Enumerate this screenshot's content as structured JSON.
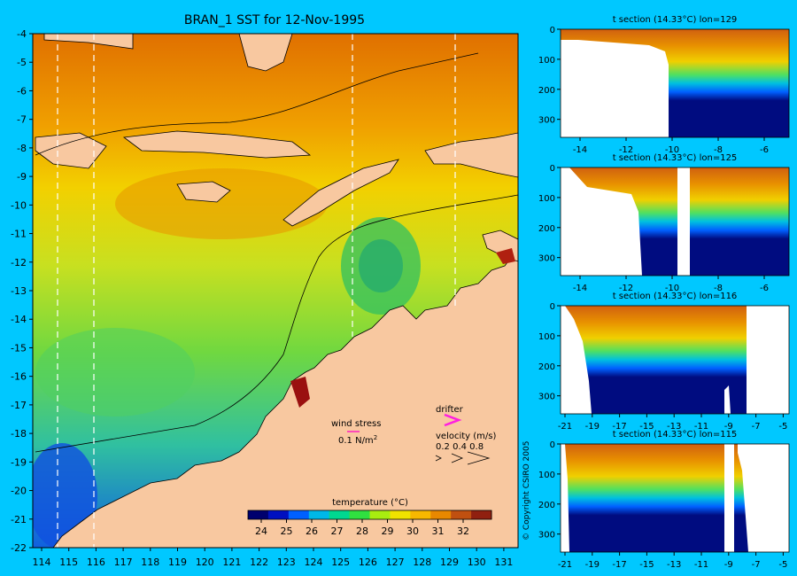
{
  "map": {
    "title": "BRAN_1 SST for 12-Nov-1995",
    "lat_ticks": [
      "-4",
      "-5",
      "-6",
      "-7",
      "-8",
      "-9",
      "-10",
      "-11",
      "-12",
      "-13",
      "-14",
      "-15",
      "-16",
      "-17",
      "-18",
      "-19",
      "-20",
      "-21",
      "-22"
    ],
    "lon_ticks": [
      "114",
      "115",
      "116",
      "117",
      "118",
      "119",
      "120",
      "121",
      "122",
      "123",
      "124",
      "125",
      "126",
      "127",
      "128",
      "129",
      "130",
      "131"
    ],
    "section_lons": [
      114.5,
      115.8,
      125.3,
      129.0
    ],
    "legend": {
      "wind_label": "wind stress",
      "wind_scale": "0.1 N/m",
      "wind_scale_sup": "2",
      "drifter_label": "drifter",
      "velocity_label": "velocity (m/s)",
      "velocity_scale": "0.2 0.4 0.8"
    },
    "colorbar": {
      "label": "temperature (°C)",
      "ticks": [
        "24",
        "25",
        "26",
        "27",
        "28",
        "29",
        "30",
        "31",
        "32"
      ],
      "colors": [
        "#00006e",
        "#0010c0",
        "#0060ff",
        "#00b8e8",
        "#00d890",
        "#30e040",
        "#a8ec10",
        "#f0e400",
        "#f8b800",
        "#e88800",
        "#c05010",
        "#902010"
      ]
    },
    "land_color": "#f8c8a0",
    "copyright": "© Copyright CSIRO 2005"
  },
  "sections": [
    {
      "title": "t section (14.33°C) lon=129",
      "xticks": [
        "-14",
        "-12",
        "-10",
        "-8",
        "-6"
      ],
      "yticks": [
        "0",
        "100",
        "200",
        "300"
      ]
    },
    {
      "title": "t section (14.33°C) lon=125",
      "xticks": [
        "-14",
        "-12",
        "-10",
        "-8",
        "-6"
      ],
      "yticks": [
        "0",
        "100",
        "200",
        "300"
      ]
    },
    {
      "title": "t section (14.33°C) lon=116",
      "xticks": [
        "-21",
        "-19",
        "-17",
        "-15",
        "-13",
        "-11",
        "-9",
        "-7",
        "-5"
      ],
      "yticks": [
        "0",
        "100",
        "200",
        "300"
      ]
    },
    {
      "title": "t section (14.33°C) lon=115",
      "xticks": [
        "-21",
        "-19",
        "-17",
        "-15",
        "-13",
        "-11",
        "-9",
        "-7",
        "-5"
      ],
      "yticks": [
        "0",
        "100",
        "200",
        "300"
      ]
    }
  ]
}
